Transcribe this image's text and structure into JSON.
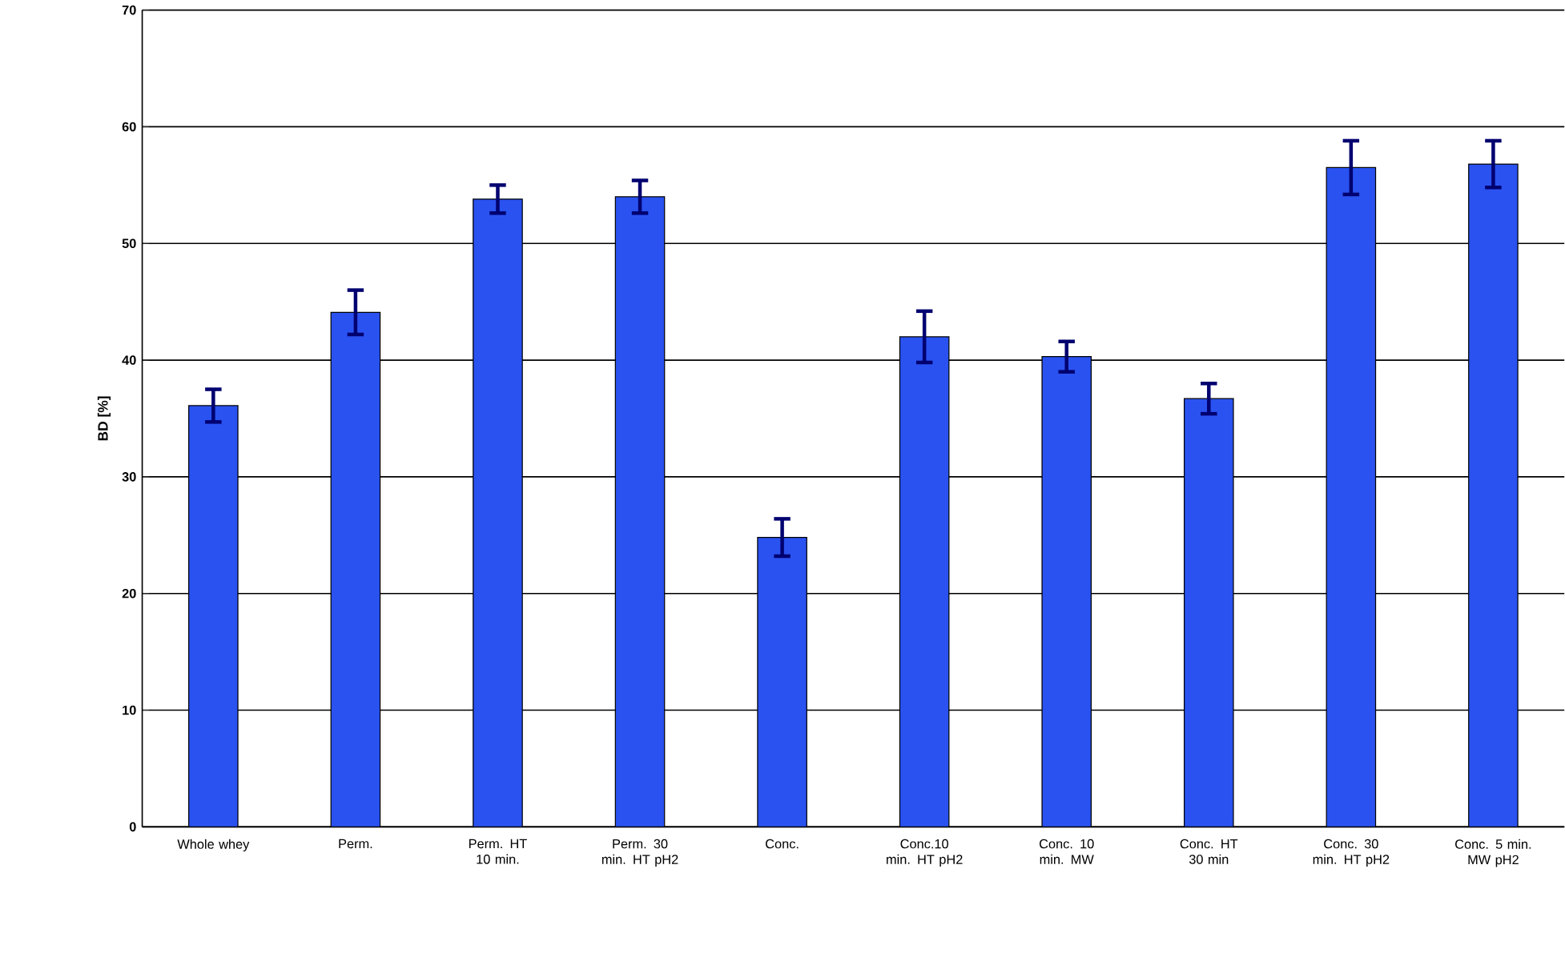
{
  "chart_data": {
    "type": "bar",
    "ylabel": "BD [%]",
    "categories": [
      "Whole whey",
      "Perm.",
      "Perm. HT 10 min.",
      "Perm. 30 min. HT pH2",
      "Conc.",
      "Conc.10 min. HT pH2",
      "Conc. 10 min. MW",
      "Conc. HT 30 min",
      "Conc. 30 min. HT pH2",
      "Conc. 5 min. MW pH2"
    ],
    "values": [
      36.1,
      44.1,
      53.8,
      54.0,
      24.8,
      42.0,
      40.3,
      36.7,
      56.5,
      56.8
    ],
    "errors": [
      1.4,
      1.9,
      1.2,
      1.4,
      1.6,
      2.2,
      1.3,
      1.3,
      2.3,
      2.0
    ],
    "color": "#2a52f0",
    "ylim": [
      0,
      70
    ],
    "yticks": [
      0,
      10,
      20,
      30,
      40,
      50,
      60,
      70
    ],
    "grid": "y"
  }
}
